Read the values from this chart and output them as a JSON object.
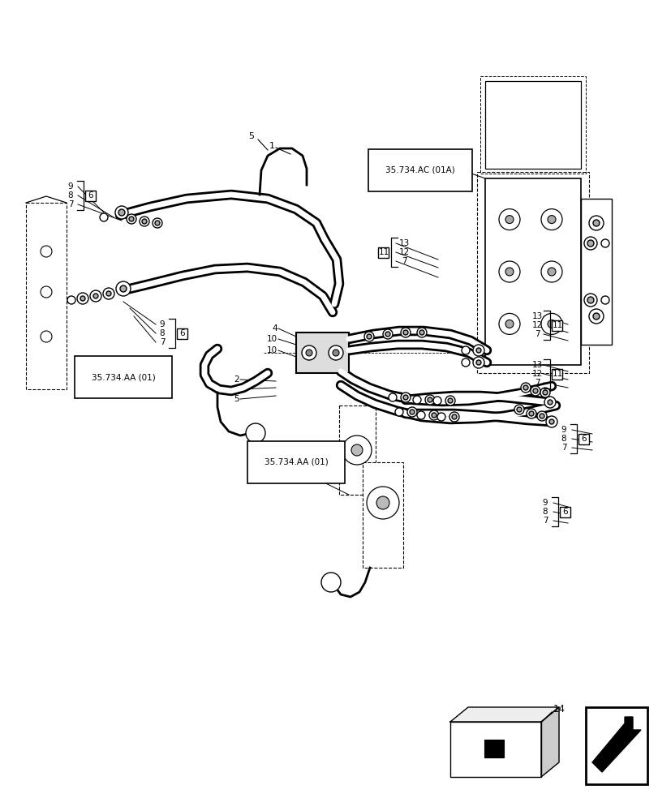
{
  "bg_color": "#ffffff",
  "line_color": "#000000",
  "fig_width": 8.12,
  "fig_height": 10.0,
  "dpi": 100,
  "labels": {
    "ref_aa_01_upper": "35.734.AA (01)",
    "ref_aa_01_lower": "35.734.AA (01)",
    "ref_ac_01a": "35.734.AC (01A)"
  }
}
